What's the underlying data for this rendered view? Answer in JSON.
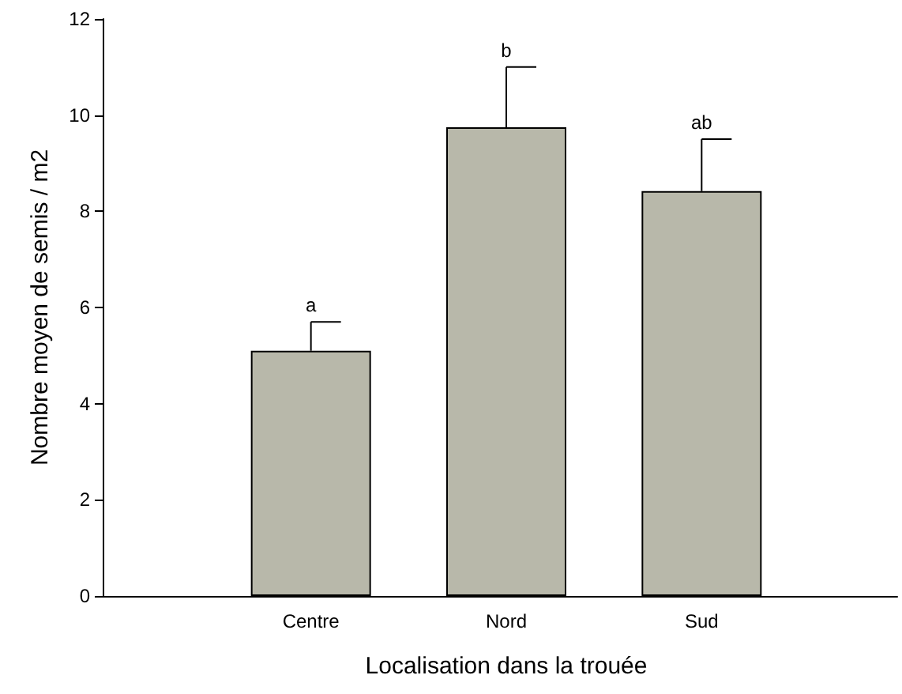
{
  "chart_data": {
    "type": "bar",
    "xlabel": "Localisation dans la trouée",
    "ylabel": "Nombre moyen de semis / m2",
    "categories": [
      "Centre",
      "Nord",
      "Sud"
    ],
    "values": [
      5.1,
      9.75,
      8.42
    ],
    "errors": [
      [
        5.1,
        5.7
      ],
      [
        9.75,
        11.0
      ],
      [
        8.42,
        9.5
      ]
    ],
    "color": "#b8b8aa",
    "ylim": [
      0,
      12
    ],
    "yticks": [
      0,
      2,
      4,
      6,
      8,
      10,
      12
    ],
    "grid": false,
    "annotations": [
      {
        "text": "a",
        "x": "Centre",
        "y": 5.85
      },
      {
        "text": "b",
        "x": "Nord",
        "y": 11.15
      },
      {
        "text": "ab",
        "x": "Sud",
        "y": 9.65
      }
    ]
  }
}
